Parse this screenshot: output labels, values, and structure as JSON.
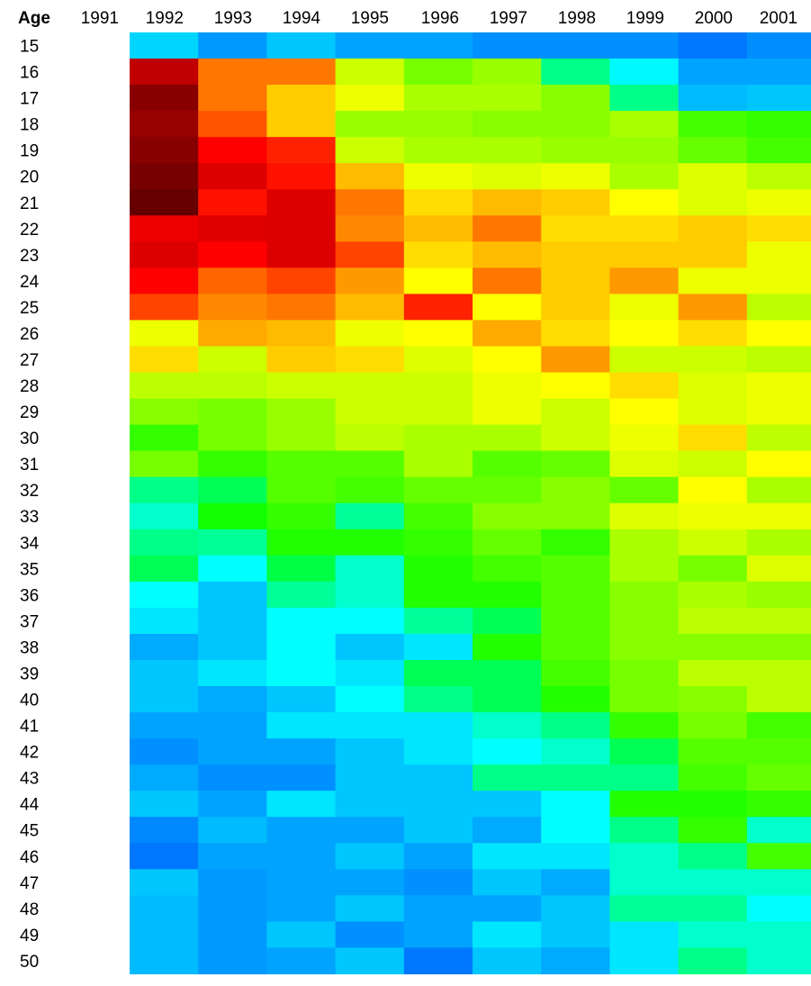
{
  "chart_data": {
    "type": "heatmap",
    "corner_label": "Age",
    "years": [
      "1991",
      "1992",
      "1993",
      "1994",
      "1995",
      "1996",
      "1997",
      "1998",
      "1999",
      "2000",
      "2001"
    ],
    "cell_years": [
      "1992",
      "1993",
      "1994",
      "1995",
      "1996",
      "1997",
      "1998",
      "1999",
      "2000",
      "2001"
    ],
    "ages": [
      "15",
      "16",
      "17",
      "18",
      "19",
      "20",
      "21",
      "22",
      "23",
      "24",
      "25",
      "26",
      "27",
      "28",
      "29",
      "30",
      "31",
      "32",
      "33",
      "34",
      "35",
      "36",
      "37",
      "38",
      "39",
      "40",
      "41",
      "42",
      "43",
      "44",
      "45",
      "46",
      "47",
      "48",
      "49",
      "50"
    ],
    "colors": {
      "15": [
        "#00d5ff",
        "#0099ff",
        "#00c6ff",
        "#00a4ff",
        "#00a4ff",
        "#0090ff",
        "#0090ff",
        "#0090ff",
        "#0077ff",
        "#008eff"
      ],
      "16": [
        "#c00000",
        "#ff7700",
        "#ff7700",
        "#ccff00",
        "#77ff00",
        "#99ff00",
        "#00ff88",
        "#00f8ff",
        "#00a4ff",
        "#00a4ff"
      ],
      "17": [
        "#880000",
        "#ff7700",
        "#ffcc00",
        "#eeff00",
        "#aaff00",
        "#aaff00",
        "#88ff00",
        "#00ff88",
        "#00bbff",
        "#00c6ff"
      ],
      "18": [
        "#990000",
        "#ff5500",
        "#ffcc00",
        "#99ff00",
        "#99ff00",
        "#88ff00",
        "#88ff00",
        "#aaff00",
        "#44ff00",
        "#33ff00"
      ],
      "19": [
        "#880000",
        "#ff0000",
        "#ff2200",
        "#ccff00",
        "#aaff00",
        "#aaff00",
        "#99ff00",
        "#99ff00",
        "#66ff00",
        "#44ff00"
      ],
      "20": [
        "#770000",
        "#dd0000",
        "#ff1100",
        "#ffbb00",
        "#eeff00",
        "#ddff00",
        "#eeff00",
        "#aaff00",
        "#ddff00",
        "#bbff00"
      ],
      "21": [
        "#660000",
        "#ff1100",
        "#dd0000",
        "#ff7700",
        "#ffdd00",
        "#ffbb00",
        "#ffcc00",
        "#ffff00",
        "#ddff00",
        "#eeff00"
      ],
      "22": [
        "#ee0000",
        "#e00000",
        "#dd0000",
        "#ff8800",
        "#ffbb00",
        "#ff7700",
        "#ffdd00",
        "#ffdd00",
        "#ffcc00",
        "#ffdd00"
      ],
      "23": [
        "#dd0000",
        "#ff0000",
        "#dd0000",
        "#ff4400",
        "#ffdd00",
        "#ffbb00",
        "#ffcc00",
        "#ffcc00",
        "#ffcc00",
        "#eeff00"
      ],
      "24": [
        "#ff0000",
        "#ff6600",
        "#ff4400",
        "#ff9900",
        "#ffff00",
        "#ff7700",
        "#ffcc00",
        "#ff9900",
        "#eeff00",
        "#eeff00"
      ],
      "25": [
        "#ff4400",
        "#ff8800",
        "#ff7700",
        "#ffbb00",
        "#ff2200",
        "#ffff00",
        "#ffcc00",
        "#eeff00",
        "#ff9900",
        "#bbff00"
      ],
      "26": [
        "#eeff00",
        "#ffaa00",
        "#ffbb00",
        "#eeff00",
        "#ffff00",
        "#ffaa00",
        "#ffdd00",
        "#ffff00",
        "#ffdd00",
        "#ffff00"
      ],
      "27": [
        "#ffdd00",
        "#ccff00",
        "#ffcc00",
        "#ffdd00",
        "#ddff00",
        "#ffff00",
        "#ff9900",
        "#ccff00",
        "#ccff00",
        "#bbff00"
      ],
      "28": [
        "#bbff00",
        "#bbff00",
        "#ccff00",
        "#ccff00",
        "#ccff00",
        "#eeff00",
        "#ffff00",
        "#ffdd00",
        "#ddff00",
        "#eeff00"
      ],
      "29": [
        "#88ff00",
        "#77ff00",
        "#99ff00",
        "#ccff00",
        "#ccff00",
        "#eeff00",
        "#ccff00",
        "#ffff00",
        "#ddff00",
        "#eeff00"
      ],
      "30": [
        "#33ff00",
        "#77ff00",
        "#99ff00",
        "#bbff00",
        "#aaff00",
        "#aaff00",
        "#ccff00",
        "#eeff00",
        "#ffdd00",
        "#bbff00"
      ],
      "31": [
        "#77ff00",
        "#33ff00",
        "#55ff00",
        "#55ff00",
        "#aaff00",
        "#55ff00",
        "#66ff00",
        "#ddff00",
        "#ccff00",
        "#ffff00"
      ],
      "32": [
        "#00ff88",
        "#00ff55",
        "#55ff00",
        "#44ff00",
        "#66ff00",
        "#66ff00",
        "#88ff00",
        "#66ff00",
        "#ffff00",
        "#aaff00"
      ],
      "33": [
        "#00ffcc",
        "#11ff00",
        "#33ff00",
        "#00ff99",
        "#44ff00",
        "#88ff00",
        "#88ff00",
        "#ddff00",
        "#eeff00",
        "#eeff00"
      ],
      "34": [
        "#00ff88",
        "#00ff99",
        "#22ff00",
        "#22ff00",
        "#33ff00",
        "#66ff00",
        "#33ff00",
        "#aaff00",
        "#ccff00",
        "#aaff00"
      ],
      "35": [
        "#00ff55",
        "#00ffff",
        "#00ff44",
        "#00ffcc",
        "#22ff00",
        "#44ff00",
        "#55ff00",
        "#aaff00",
        "#77ff00",
        "#ddff00"
      ],
      "36": [
        "#00ffff",
        "#00c6ff",
        "#00ff99",
        "#00ffcc",
        "#22ff00",
        "#22ff00",
        "#55ff00",
        "#88ff00",
        "#aaff00",
        "#99ff00"
      ],
      "37": [
        "#00e6ff",
        "#00c6ff",
        "#00ffff",
        "#00ffff",
        "#00ff99",
        "#00ff55",
        "#55ff00",
        "#88ff00",
        "#bbff00",
        "#bbff00"
      ],
      "38": [
        "#00aaff",
        "#00c6ff",
        "#00ffff",
        "#00c6ff",
        "#00e6ff",
        "#22ff00",
        "#55ff00",
        "#88ff00",
        "#88ff00",
        "#88ff00"
      ],
      "39": [
        "#00c6ff",
        "#00e6ff",
        "#00ffff",
        "#00e6ff",
        "#00ff55",
        "#00ff55",
        "#44ff00",
        "#77ff00",
        "#bbff00",
        "#bbff00"
      ],
      "40": [
        "#00c6ff",
        "#00aaff",
        "#00c6ff",
        "#00ffff",
        "#00ff88",
        "#00ff55",
        "#22ff00",
        "#77ff00",
        "#88ff00",
        "#bbff00"
      ],
      "41": [
        "#00a4ff",
        "#00a4ff",
        "#00e6ff",
        "#00e6ff",
        "#00e6ff",
        "#00ffcc",
        "#00ff88",
        "#33ff00",
        "#77ff00",
        "#44ff00"
      ],
      "42": [
        "#0090ff",
        "#00a4ff",
        "#00a4ff",
        "#00c6ff",
        "#00e6ff",
        "#00ffff",
        "#00ffcc",
        "#00ff55",
        "#55ff00",
        "#55ff00"
      ],
      "43": [
        "#00aaff",
        "#0090ff",
        "#0090ff",
        "#00c6ff",
        "#00c6ff",
        "#00ff88",
        "#00ff88",
        "#00ff88",
        "#44ff00",
        "#66ff00"
      ],
      "44": [
        "#00c6ff",
        "#00a4ff",
        "#00e6ff",
        "#00c6ff",
        "#00c6ff",
        "#00c6ff",
        "#00ffff",
        "#22ff00",
        "#22ff00",
        "#33ff00"
      ],
      "45": [
        "#0088ff",
        "#00bbff",
        "#00a4ff",
        "#00a4ff",
        "#00c6ff",
        "#00aaff",
        "#00ffff",
        "#00ff88",
        "#33ff00",
        "#00ffcc"
      ],
      "46": [
        "#0077ff",
        "#00a4ff",
        "#00a4ff",
        "#00c6ff",
        "#00a4ff",
        "#00e6ff",
        "#00e6ff",
        "#00ffcc",
        "#00ff88",
        "#44ff00"
      ],
      "47": [
        "#00c6ff",
        "#0099ff",
        "#00a4ff",
        "#00a4ff",
        "#0090ff",
        "#00c6ff",
        "#00aaff",
        "#00ffcc",
        "#00ffcc",
        "#00ffcc"
      ],
      "48": [
        "#00bbff",
        "#0099ff",
        "#00a4ff",
        "#00c6ff",
        "#00a4ff",
        "#00a4ff",
        "#00c6ff",
        "#00ff99",
        "#00ff99",
        "#00ffff"
      ],
      "49": [
        "#00bbff",
        "#0099ff",
        "#00c6ff",
        "#0090ff",
        "#00a4ff",
        "#00e6ff",
        "#00c6ff",
        "#00e6ff",
        "#00ffcc",
        "#00ffcc"
      ],
      "50": [
        "#00bbff",
        "#0099ff",
        "#00a4ff",
        "#00c6ff",
        "#0077ff",
        "#00c6ff",
        "#00aaff",
        "#00e6ff",
        "#00ff88",
        "#00ffcc"
      ]
    }
  }
}
